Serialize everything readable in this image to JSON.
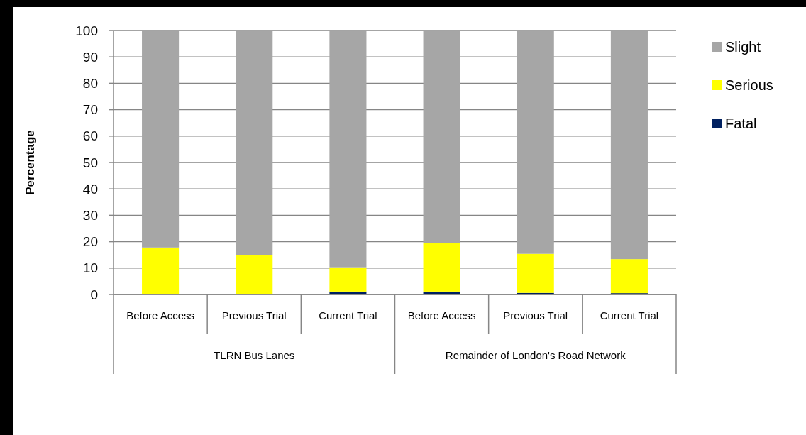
{
  "chart_data": {
    "type": "bar",
    "stacked": true,
    "ylabel": "Percentage",
    "categories": [
      "Before Access",
      "Previous Trial",
      "Current Trial",
      "Before Access",
      "Previous Trial",
      "Current Trial"
    ],
    "annotations": [
      "TLRN Bus Lanes",
      "Remainder of London's Road Network"
    ],
    "series": [
      {
        "name": "Fatal",
        "color": "#002060",
        "values": [
          0,
          0,
          1.1,
          1.1,
          0.6,
          0.5
        ]
      },
      {
        "name": "Serious",
        "color": "#ffff00",
        "values": [
          17.8,
          14.8,
          9.2,
          18.3,
          14.8,
          12.9
        ]
      },
      {
        "name": "Slight",
        "color": "#a6a6a6",
        "values": [
          82.2,
          85.2,
          89.7,
          80.6,
          84.6,
          86.6
        ]
      }
    ],
    "ylim": [
      0,
      100
    ],
    "yticks": [
      0,
      10,
      20,
      30,
      40,
      50,
      60,
      70,
      80,
      90,
      100
    ],
    "grid": "y",
    "legend": "right"
  }
}
